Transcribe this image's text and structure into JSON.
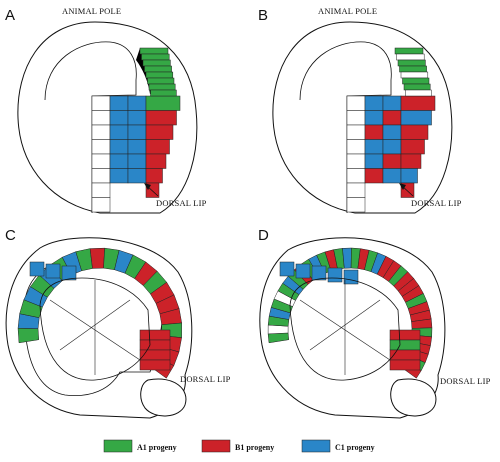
{
  "colors": {
    "a1": "#35a845",
    "b1": "#cc2229",
    "c1": "#2a86c8",
    "line": "#111111"
  },
  "panels": {
    "A": {
      "letter": "A",
      "top_label": "ANIMAL POLE",
      "lip_label": "DORSAL LIP"
    },
    "B": {
      "letter": "B",
      "top_label": "ANIMAL POLE",
      "lip_label": "DORSAL LIP"
    },
    "C": {
      "letter": "C",
      "lip_label": "DORSAL LIP"
    },
    "D": {
      "letter": "D",
      "lip_label": "DORSAL LIP"
    }
  },
  "legend": {
    "items": [
      {
        "label": "A1 progeny",
        "color_key": "a1"
      },
      {
        "label": "B1 progeny",
        "color_key": "b1"
      },
      {
        "label": "C1 progeny",
        "color_key": "c1"
      }
    ]
  }
}
